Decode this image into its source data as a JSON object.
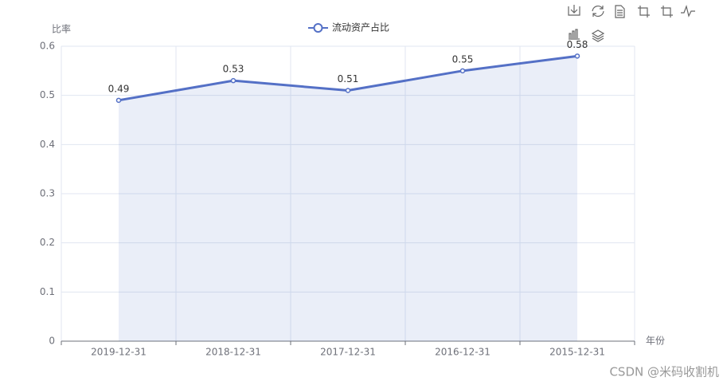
{
  "chart_data": {
    "type": "line",
    "y_axis_label": "比率",
    "x_axis_label": "年份",
    "categories": [
      "2019-12-31",
      "2018-12-31",
      "2017-12-31",
      "2016-12-31",
      "2015-12-31"
    ],
    "series": [
      {
        "name": "流动资产占比",
        "color": "#5470c6",
        "values": [
          0.49,
          0.53,
          0.51,
          0.55,
          0.58
        ]
      }
    ],
    "area": true,
    "data_labels": true,
    "ylim": [
      0,
      0.6
    ],
    "yticks": [
      0,
      0.1,
      0.2,
      0.3,
      0.4,
      0.5,
      0.6
    ],
    "grid": true,
    "legend": "top",
    "watermark": "CSDN @米码收割机"
  }
}
